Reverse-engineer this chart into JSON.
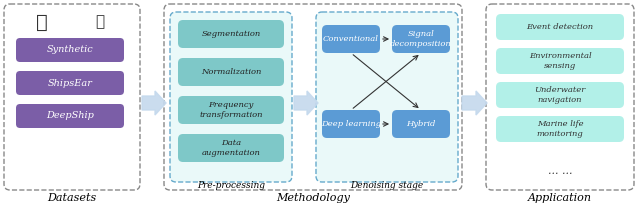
{
  "bg_color": "#ffffff",
  "section_labels": [
    "Datasets",
    "Methodology",
    "Application"
  ],
  "datasets_items": [
    "Synthetic",
    "ShipsEar",
    "DeepShip"
  ],
  "datasets_box_color": "#7b5ea7",
  "preprocessing_items": [
    "Segmentation",
    "Normalization",
    "Frequency\ntransformation",
    "Data\naugmentation"
  ],
  "preprocessing_box_color": "#7ec8c8",
  "preprocessing_label": "Pre-processing",
  "denoising_items_left": [
    "Conventional",
    "Deep learning"
  ],
  "denoising_items_right": [
    "Signal\ndecomposition",
    "Hybrid"
  ],
  "denoising_box_color": "#5b9bd5",
  "denoising_label": "Denoising stage",
  "application_items": [
    "Event detection",
    "Environmental\nsensing",
    "Underwater\nnavigation",
    "Marine life\nmonitoring",
    "... ..."
  ],
  "application_box_color": "#b2f0e8",
  "methodology_label": "Methodology",
  "arrow_color": "#c5d9ed",
  "cross_arrow_color": "#555555",
  "dashed_border_color": "#888888",
  "dot_border_color": "#66aacc"
}
